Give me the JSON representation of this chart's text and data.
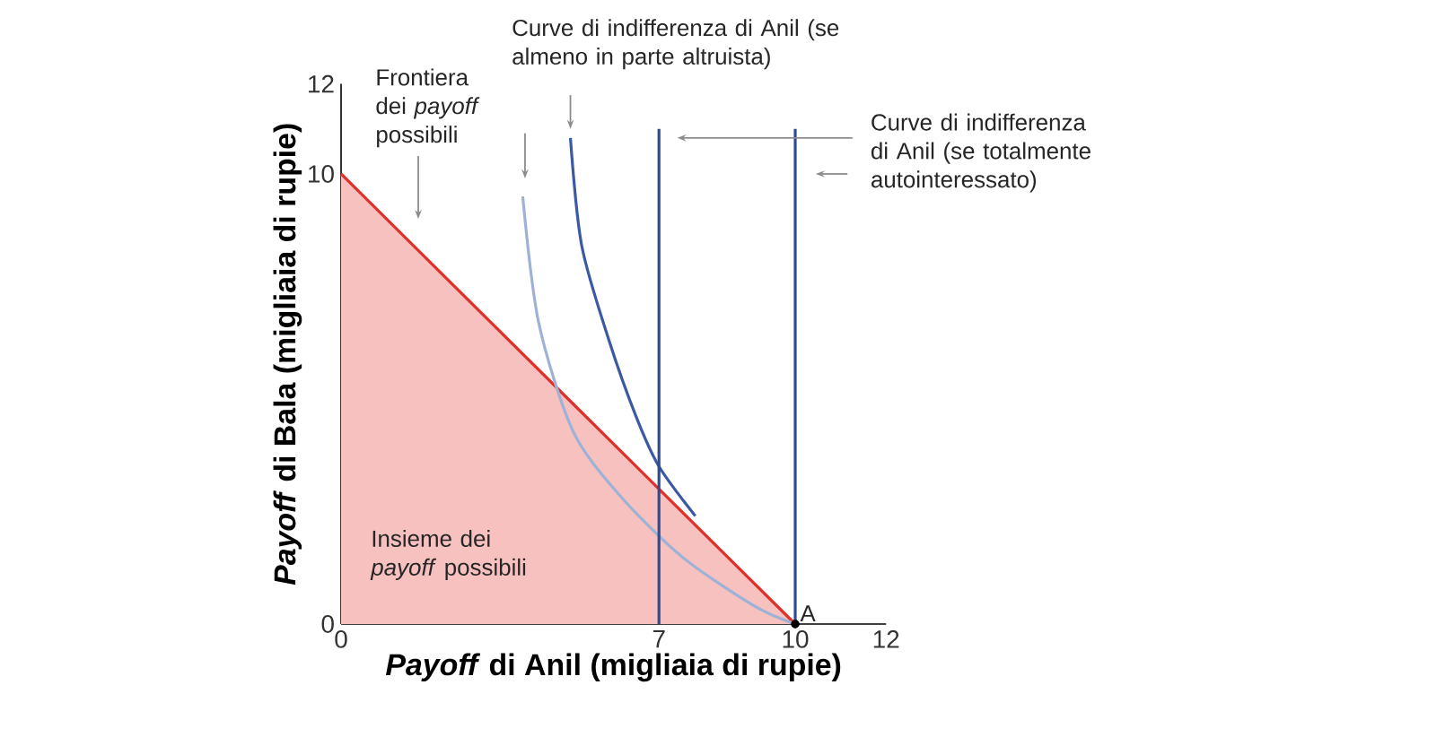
{
  "chart_data": {
    "type": "line",
    "xlabel": "*Payoff* di Anil (migliaia di rupie)",
    "ylabel": "*Payoff* di Bala (migliaia di rupie)",
    "xlim": [
      0,
      12
    ],
    "ylim": [
      0,
      12
    ],
    "xticks": [
      0,
      7,
      10,
      12
    ],
    "yticks": [
      0,
      10,
      12
    ],
    "series": [
      {
        "type": "area",
        "color": "#e0302a",
        "x": [
          0,
          5,
          10
        ],
        "values": [
          10,
          5,
          0
        ]
      },
      {
        "color": "#9fb2d6",
        "x": [
          4.0,
          4.35,
          5.1,
          6.1,
          7.5,
          9.1,
          10
        ],
        "values": [
          9.5,
          6.7,
          4.3,
          2.9,
          1.5,
          0.4,
          0
        ]
      },
      {
        "color": "#3b5aa3",
        "x": [
          5.05,
          5.3,
          5.9,
          6.5,
          7.0,
          7.8
        ],
        "values": [
          10.8,
          8.4,
          6.3,
          4.6,
          3.5,
          2.4
        ]
      },
      {
        "color": "#2f4b93",
        "x": [
          7,
          7,
          7
        ],
        "values": [
          0,
          5.5,
          11
        ]
      },
      {
        "color": "#2f4b93",
        "x": [
          10,
          10,
          10
        ],
        "values": [
          0,
          5.5,
          11
        ]
      },
      {
        "type": "scatter",
        "color": "#000000",
        "marker": "circle",
        "x": [
          10
        ],
        "values": [
          0
        ]
      }
    ],
    "annotations": [
      "Frontiera dei *payoff* possibili",
      "Curve di indifferenza di Anil (se almeno in parte altruista)",
      "Curve di indifferenza di Anil (se totalmente autointeressato)",
      "Insieme dei *payoff* possibili",
      {
        "text": "A",
        "x": 10,
        "y": 0
      }
    ]
  }
}
